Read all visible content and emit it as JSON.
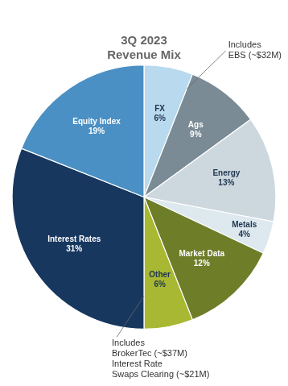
{
  "chart_data": {
    "type": "pie",
    "title": "3Q 2023\nRevenue Mix",
    "categories": [
      "FX",
      "Ags",
      "Energy",
      "Metals",
      "Market Data",
      "Other",
      "Interest Rates",
      "Equity Index"
    ],
    "values": [
      6,
      9,
      13,
      4,
      12,
      6,
      31,
      19
    ],
    "value_labels": [
      "6%",
      "9%",
      "13%",
      "4%",
      "12%",
      "6%",
      "31%",
      "19%"
    ],
    "colors": [
      "#b8d9ee",
      "#7b8b95",
      "#cdd8de",
      "#dde8ef",
      "#6e7d28",
      "#a8b832",
      "#17375e",
      "#4a90c4"
    ],
    "data_labels": true,
    "annotations": [
      "Includes\nEBS (~$32M)",
      "Includes\nBrokerTec (~$37M)\nInterest Rate\nSwaps Clearing (~$21M)"
    ]
  }
}
